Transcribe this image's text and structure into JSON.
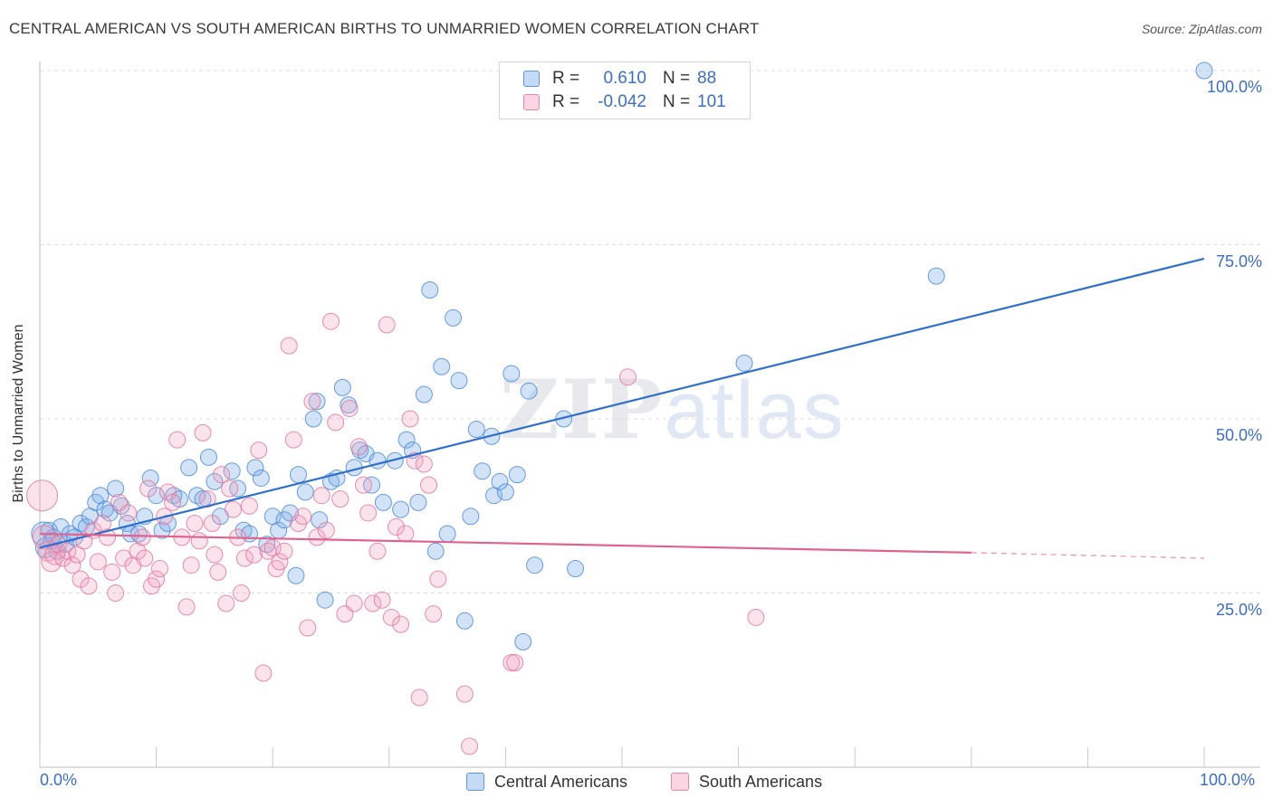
{
  "title": "CENTRAL AMERICAN VS SOUTH AMERICAN BIRTHS TO UNMARRIED WOMEN CORRELATION CHART",
  "source": "Source: ZipAtlas.com",
  "watermark": {
    "zip": "ZIP",
    "atlas": "atlas"
  },
  "legend": {
    "r_label": "R =",
    "n_label": "N =",
    "rows": [
      {
        "r": "0.610",
        "n": "88",
        "color": "#7fb0e8"
      },
      {
        "r": "-0.042",
        "n": "101",
        "color": "#f2a3bf"
      }
    ]
  },
  "chart_data": {
    "type": "scatter",
    "title": "CENTRAL AMERICAN VS SOUTH AMERICAN BIRTHS TO UNMARRIED WOMEN CORRELATION CHART",
    "xlabel": "",
    "ylabel": "Births to Unmarried Women",
    "xlim": [
      0,
      100
    ],
    "ylim": [
      0,
      100
    ],
    "x_tick_labels": [
      "0.0%",
      "100.0%"
    ],
    "y_tick_labels": [
      "25.0%",
      "50.0%",
      "75.0%",
      "100.0%"
    ],
    "y_ticks": [
      25,
      50,
      75,
      100
    ],
    "grid": true,
    "legend_position": "top-center",
    "series": [
      {
        "name": "Central Americans",
        "color": "#7fb0e8",
        "line_color": "#2f6fce",
        "trend": {
          "x0": 0,
          "y0": 31.5,
          "x1": 100,
          "y1": 73.0
        },
        "points": [
          [
            0.3,
            33.5,
            3
          ],
          [
            0.5,
            31.5,
            2
          ],
          [
            0.8,
            34.0,
            1
          ],
          [
            1.0,
            32.5,
            1
          ],
          [
            1.2,
            33.0,
            1
          ],
          [
            1.5,
            31.0,
            1
          ],
          [
            1.8,
            34.5,
            1
          ],
          [
            2.2,
            32.0,
            1
          ],
          [
            2.6,
            33.5,
            1
          ],
          [
            3.0,
            33.0,
            1
          ],
          [
            3.5,
            35.0,
            1
          ],
          [
            4.0,
            34.5,
            1
          ],
          [
            4.3,
            36.0,
            1
          ],
          [
            4.8,
            38.0,
            1
          ],
          [
            5.2,
            39.0,
            1
          ],
          [
            5.6,
            37.0,
            1
          ],
          [
            6.0,
            36.5,
            1
          ],
          [
            6.5,
            40.0,
            1
          ],
          [
            7.0,
            37.5,
            1
          ],
          [
            7.5,
            35.0,
            1
          ],
          [
            7.8,
            33.5,
            1
          ],
          [
            8.5,
            33.5,
            1
          ],
          [
            9.0,
            36.0,
            1
          ],
          [
            9.5,
            41.5,
            1
          ],
          [
            10.0,
            39.0,
            1
          ],
          [
            10.5,
            34.0,
            1
          ],
          [
            11.0,
            35.0,
            1
          ],
          [
            11.5,
            39.0,
            1
          ],
          [
            12.0,
            38.5,
            1
          ],
          [
            12.8,
            43.0,
            1
          ],
          [
            13.5,
            39.0,
            1
          ],
          [
            14.0,
            38.5,
            1
          ],
          [
            14.5,
            44.5,
            1
          ],
          [
            15.0,
            41.0,
            1
          ],
          [
            15.5,
            36.0,
            1
          ],
          [
            16.5,
            42.5,
            1
          ],
          [
            17.0,
            40.0,
            1
          ],
          [
            17.5,
            34.0,
            1
          ],
          [
            18.0,
            33.5,
            1
          ],
          [
            18.5,
            43.0,
            1
          ],
          [
            19.0,
            41.5,
            1
          ],
          [
            19.5,
            32.0,
            1
          ],
          [
            20.0,
            36.0,
            1
          ],
          [
            20.5,
            34.0,
            1
          ],
          [
            21.0,
            35.5,
            1
          ],
          [
            21.5,
            36.5,
            1
          ],
          [
            22.0,
            27.5,
            1
          ],
          [
            22.2,
            42.0,
            1
          ],
          [
            22.8,
            39.5,
            1
          ],
          [
            23.5,
            50.0,
            1
          ],
          [
            23.8,
            52.5,
            1
          ],
          [
            24.0,
            35.5,
            1
          ],
          [
            24.5,
            24.0,
            1
          ],
          [
            25.0,
            41.0,
            1
          ],
          [
            25.5,
            41.5,
            1
          ],
          [
            26.0,
            54.5,
            1
          ],
          [
            26.5,
            52.0,
            1
          ],
          [
            27.0,
            43.0,
            1
          ],
          [
            27.5,
            45.5,
            1
          ],
          [
            28.0,
            45.0,
            1
          ],
          [
            28.5,
            40.5,
            1
          ],
          [
            29.0,
            44.0,
            1
          ],
          [
            29.5,
            38.0,
            1
          ],
          [
            30.5,
            44.0,
            1
          ],
          [
            31.0,
            37.0,
            1
          ],
          [
            31.5,
            47.0,
            1
          ],
          [
            32.0,
            45.5,
            1
          ],
          [
            32.5,
            38.0,
            1
          ],
          [
            33.0,
            53.5,
            1
          ],
          [
            33.5,
            68.5,
            1
          ],
          [
            34.0,
            31.0,
            1
          ],
          [
            34.5,
            57.5,
            1
          ],
          [
            35.0,
            33.5,
            1
          ],
          [
            35.5,
            64.5,
            1
          ],
          [
            36.0,
            55.5,
            1
          ],
          [
            36.5,
            21.0,
            1
          ],
          [
            37.0,
            36.0,
            1
          ],
          [
            37.5,
            48.5,
            1
          ],
          [
            38.0,
            42.5,
            1
          ],
          [
            38.8,
            47.5,
            1
          ],
          [
            39.0,
            39.0,
            1
          ],
          [
            39.5,
            41.0,
            1
          ],
          [
            40.0,
            39.5,
            1
          ],
          [
            40.5,
            56.5,
            1
          ],
          [
            41.0,
            42.0,
            1
          ],
          [
            41.5,
            18.0,
            1
          ],
          [
            42.0,
            54.0,
            1
          ],
          [
            42.5,
            29.0,
            1
          ],
          [
            45.0,
            50.0,
            1
          ],
          [
            46.0,
            28.5,
            1
          ],
          [
            60.5,
            58.0,
            1
          ],
          [
            77.0,
            70.5,
            1
          ],
          [
            100.0,
            100.0,
            1
          ]
        ]
      },
      {
        "name": "South Americans",
        "color": "#f2a3bf",
        "line_color": "#e0628f",
        "trend": {
          "x0": 0,
          "y0": 33.5,
          "x1": 80,
          "y1": 30.8,
          "dash_x1": 100,
          "dash_y1": 30.0
        },
        "points": [
          [
            0.2,
            39.0,
            4
          ],
          [
            0.4,
            33.0,
            3
          ],
          [
            0.7,
            31.0,
            2
          ],
          [
            1.0,
            29.5,
            2
          ],
          [
            1.3,
            30.5,
            2
          ],
          [
            1.6,
            32.0,
            1
          ],
          [
            2.0,
            30.0,
            1
          ],
          [
            2.4,
            31.0,
            1
          ],
          [
            2.8,
            29.0,
            1
          ],
          [
            3.2,
            30.5,
            1
          ],
          [
            3.5,
            27.0,
            1
          ],
          [
            3.8,
            32.5,
            1
          ],
          [
            4.2,
            26.0,
            1
          ],
          [
            4.6,
            34.0,
            1
          ],
          [
            5.0,
            29.5,
            1
          ],
          [
            5.4,
            35.0,
            1
          ],
          [
            5.8,
            33.0,
            1
          ],
          [
            6.2,
            28.0,
            1
          ],
          [
            6.5,
            25.0,
            1
          ],
          [
            6.8,
            38.0,
            1
          ],
          [
            7.2,
            30.0,
            1
          ],
          [
            7.6,
            36.5,
            1
          ],
          [
            8.0,
            29.0,
            1
          ],
          [
            8.4,
            31.0,
            1
          ],
          [
            8.8,
            33.0,
            1
          ],
          [
            9.0,
            30.0,
            1
          ],
          [
            9.3,
            40.0,
            1
          ],
          [
            9.6,
            26.0,
            1
          ],
          [
            10.0,
            27.0,
            1
          ],
          [
            10.3,
            28.5,
            1
          ],
          [
            10.7,
            36.0,
            1
          ],
          [
            11.0,
            39.5,
            1
          ],
          [
            11.4,
            38.0,
            1
          ],
          [
            11.8,
            47.0,
            1
          ],
          [
            12.2,
            33.0,
            1
          ],
          [
            12.6,
            23.0,
            1
          ],
          [
            13.0,
            29.0,
            1
          ],
          [
            13.3,
            35.0,
            1
          ],
          [
            13.7,
            32.5,
            1
          ],
          [
            14.0,
            48.0,
            1
          ],
          [
            14.4,
            38.5,
            1
          ],
          [
            14.8,
            35.0,
            1
          ],
          [
            15.0,
            30.5,
            1
          ],
          [
            15.3,
            28.0,
            1
          ],
          [
            15.6,
            42.0,
            1
          ],
          [
            16.0,
            23.5,
            1
          ],
          [
            16.3,
            40.0,
            1
          ],
          [
            16.6,
            37.0,
            1
          ],
          [
            17.0,
            33.0,
            1
          ],
          [
            17.3,
            25.0,
            1
          ],
          [
            17.6,
            30.0,
            1
          ],
          [
            18.0,
            37.5,
            1
          ],
          [
            18.4,
            30.5,
            1
          ],
          [
            18.8,
            45.5,
            1
          ],
          [
            19.2,
            13.5,
            1
          ],
          [
            19.6,
            31.0,
            1
          ],
          [
            20.0,
            31.5,
            1
          ],
          [
            20.3,
            28.5,
            1
          ],
          [
            20.6,
            29.5,
            1
          ],
          [
            21.0,
            31.0,
            1
          ],
          [
            21.4,
            60.5,
            1
          ],
          [
            21.8,
            47.0,
            1
          ],
          [
            22.2,
            35.0,
            1
          ],
          [
            22.6,
            36.0,
            1
          ],
          [
            23.0,
            20.0,
            1
          ],
          [
            23.4,
            52.5,
            1
          ],
          [
            23.8,
            33.0,
            1
          ],
          [
            24.2,
            39.0,
            1
          ],
          [
            24.6,
            34.0,
            1
          ],
          [
            25.0,
            64.0,
            1
          ],
          [
            25.4,
            49.5,
            1
          ],
          [
            25.8,
            38.5,
            1
          ],
          [
            26.2,
            22.0,
            1
          ],
          [
            26.6,
            51.5,
            1
          ],
          [
            27.0,
            23.5,
            1
          ],
          [
            27.4,
            46.0,
            1
          ],
          [
            27.8,
            40.5,
            1
          ],
          [
            28.2,
            36.5,
            1
          ],
          [
            28.6,
            23.5,
            1
          ],
          [
            29.0,
            31.0,
            1
          ],
          [
            29.4,
            24.0,
            1
          ],
          [
            29.8,
            63.5,
            1
          ],
          [
            30.2,
            21.5,
            1
          ],
          [
            30.6,
            34.5,
            1
          ],
          [
            31.0,
            20.5,
            1
          ],
          [
            31.4,
            33.5,
            1
          ],
          [
            31.8,
            50.0,
            1
          ],
          [
            32.2,
            44.0,
            1
          ],
          [
            32.6,
            10.0,
            1
          ],
          [
            33.0,
            43.5,
            1
          ],
          [
            33.4,
            40.5,
            1
          ],
          [
            33.8,
            22.0,
            1
          ],
          [
            34.2,
            27.0,
            1
          ],
          [
            36.5,
            10.5,
            1
          ],
          [
            36.9,
            3.0,
            1
          ],
          [
            40.5,
            15.0,
            1
          ],
          [
            40.8,
            15.0,
            1
          ],
          [
            50.5,
            56.0,
            1
          ],
          [
            61.5,
            21.5,
            1
          ]
        ]
      }
    ]
  }
}
